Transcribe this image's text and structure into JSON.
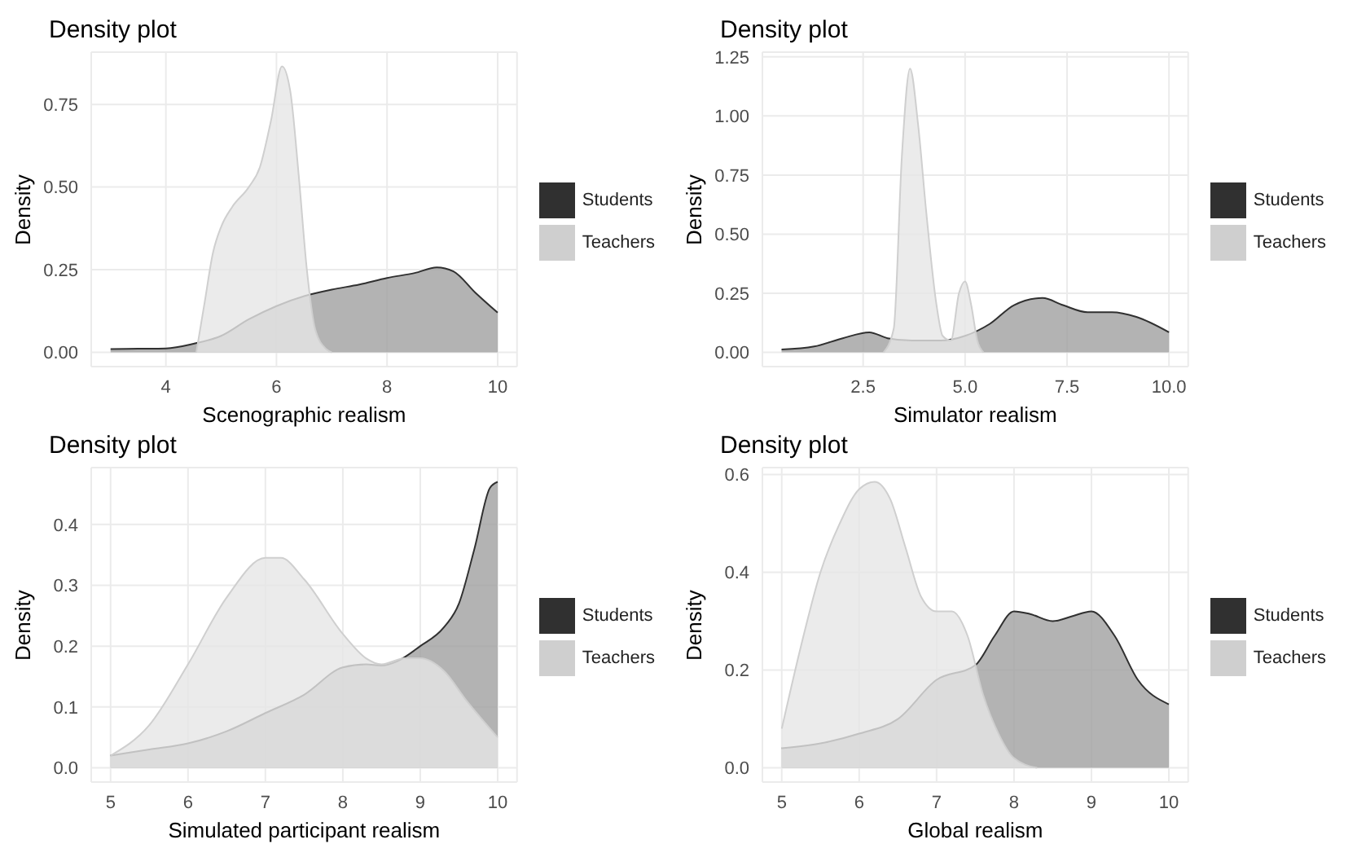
{
  "chart_data": [
    {
      "type": "area",
      "title": "Density plot",
      "xlabel": "Scenographic realism",
      "ylabel": "Density",
      "xlim": [
        2.65,
        10.35
      ],
      "xticks": [
        4,
        6,
        8,
        10
      ],
      "ylim": [
        -0.043,
        0.908
      ],
      "yticks": [
        {
          "value": 0,
          "label": "0.00"
        },
        0.25,
        {
          "value": 0.5,
          "label": "0.50"
        },
        0.75
      ],
      "grid": true,
      "legend": "right",
      "series": [
        {
          "name": "Students",
          "color": "#a0a0a0",
          "x": [
            3,
            3.5,
            4,
            4.5,
            5,
            5.5,
            6,
            6.5,
            7,
            7.5,
            8,
            8.5,
            8.9,
            9.2,
            9.6,
            10
          ],
          "values": [
            0.01,
            0.011,
            0.012,
            0.026,
            0.05,
            0.1,
            0.14,
            0.17,
            0.19,
            0.205,
            0.225,
            0.24,
            0.257,
            0.245,
            0.18,
            0.12
          ]
        },
        {
          "name": "Teachers",
          "color": "#e6e6e6",
          "x": [
            4.55,
            4.7,
            4.85,
            5,
            5.2,
            5.5,
            5.7,
            5.9,
            6.1,
            6.25,
            6.4,
            6.55,
            6.7,
            6.9,
            7
          ],
          "values": [
            0,
            0.15,
            0.3,
            0.38,
            0.44,
            0.5,
            0.56,
            0.7,
            0.865,
            0.79,
            0.54,
            0.25,
            0.07,
            0.01,
            0
          ]
        }
      ]
    },
    {
      "type": "area",
      "title": "Density plot",
      "xlabel": "Simulator realism",
      "ylabel": "Density",
      "xlim": [
        0.03,
        10.47
      ],
      "xticks": [
        2.5,
        {
          "value": 5,
          "label": "5.0"
        },
        7.5,
        {
          "value": 10,
          "label": "10.0"
        }
      ],
      "ylim": [
        -0.06,
        1.27
      ],
      "yticks": [
        {
          "value": 0,
          "label": "0.00"
        },
        0.25,
        {
          "value": 0.5,
          "label": "0.50"
        },
        0.75,
        {
          "value": 1,
          "label": "1.00"
        },
        1.25
      ],
      "grid": true,
      "legend": "right",
      "series": [
        {
          "name": "Students",
          "color": "#a0a0a0",
          "x": [
            0.5,
            1.3,
            2,
            2.65,
            3.1,
            3.7,
            4.4,
            5,
            5.6,
            6.2,
            6.9,
            7.4,
            8,
            8.6,
            9.2,
            10
          ],
          "values": [
            0.012,
            0.025,
            0.06,
            0.085,
            0.06,
            0.05,
            0.05,
            0.07,
            0.12,
            0.2,
            0.23,
            0.2,
            0.17,
            0.17,
            0.15,
            0.085
          ]
        },
        {
          "name": "Teachers",
          "color": "#e6e6e6",
          "x": [
            3,
            3.25,
            3.45,
            3.65,
            3.85,
            4.05,
            4.3,
            4.45,
            4.65,
            4.85,
            5,
            5.15,
            5.3,
            5.45
          ],
          "values": [
            0,
            0.1,
            0.83,
            1.2,
            0.96,
            0.59,
            0.2,
            0.07,
            0.05,
            0.25,
            0.3,
            0.2,
            0.05,
            0
          ]
        }
      ]
    },
    {
      "type": "area",
      "title": "Density plot",
      "xlabel": "Simulated participant realism",
      "ylabel": "Density",
      "xlim": [
        4.75,
        10.25
      ],
      "xticks": [
        5,
        6,
        7,
        8,
        9,
        10
      ],
      "ylim": [
        -0.0235,
        0.4935
      ],
      "yticks": [
        {
          "value": 0,
          "label": "0.0"
        },
        0.1,
        0.2,
        0.3,
        0.4
      ],
      "grid": true,
      "legend": "right",
      "series": [
        {
          "name": "Students",
          "color": "#a0a0a0",
          "x": [
            5,
            5.5,
            6,
            6.5,
            7,
            7.5,
            8,
            8.3,
            8.5,
            8.7,
            9,
            9.3,
            9.5,
            9.7,
            9.9,
            10
          ],
          "values": [
            0.02,
            0.03,
            0.04,
            0.06,
            0.09,
            0.12,
            0.165,
            0.17,
            0.168,
            0.175,
            0.2,
            0.23,
            0.27,
            0.36,
            0.46,
            0.47
          ]
        },
        {
          "name": "Teachers",
          "color": "#e6e6e6",
          "x": [
            5,
            5.5,
            6,
            6.5,
            7,
            7.2,
            7.5,
            8,
            8.3,
            8.5,
            8.8,
            9,
            9.3,
            9.6,
            10
          ],
          "values": [
            0.02,
            0.07,
            0.17,
            0.28,
            0.345,
            0.345,
            0.31,
            0.22,
            0.18,
            0.17,
            0.18,
            0.18,
            0.16,
            0.11,
            0.05
          ]
        }
      ]
    },
    {
      "type": "area",
      "title": "Density plot",
      "xlabel": "Global realism",
      "ylabel": "Density",
      "xlim": [
        4.75,
        10.25
      ],
      "xticks": [
        5,
        6,
        7,
        8,
        9,
        10
      ],
      "ylim": [
        -0.029,
        0.614
      ],
      "yticks": [
        {
          "value": 0,
          "label": "0.0"
        },
        0.2,
        0.4,
        0.6
      ],
      "grid": true,
      "legend": "right",
      "series": [
        {
          "name": "Students",
          "color": "#a0a0a0",
          "x": [
            5,
            5.5,
            6,
            6.5,
            7,
            7.5,
            7.75,
            8,
            8.2,
            8.5,
            8.75,
            9,
            9.3,
            9.6,
            10
          ],
          "values": [
            0.04,
            0.05,
            0.07,
            0.1,
            0.18,
            0.21,
            0.27,
            0.32,
            0.315,
            0.3,
            0.31,
            0.32,
            0.27,
            0.18,
            0.13
          ]
        },
        {
          "name": "Teachers",
          "color": "#e6e6e6",
          "x": [
            5,
            5.25,
            5.5,
            5.75,
            6,
            6.2,
            6.4,
            6.6,
            6.8,
            7,
            7.2,
            7.4,
            7.6,
            7.8,
            8,
            8.3
          ],
          "values": [
            0.08,
            0.25,
            0.4,
            0.5,
            0.57,
            0.585,
            0.55,
            0.45,
            0.35,
            0.32,
            0.32,
            0.27,
            0.15,
            0.07,
            0.02,
            0
          ]
        }
      ]
    }
  ]
}
